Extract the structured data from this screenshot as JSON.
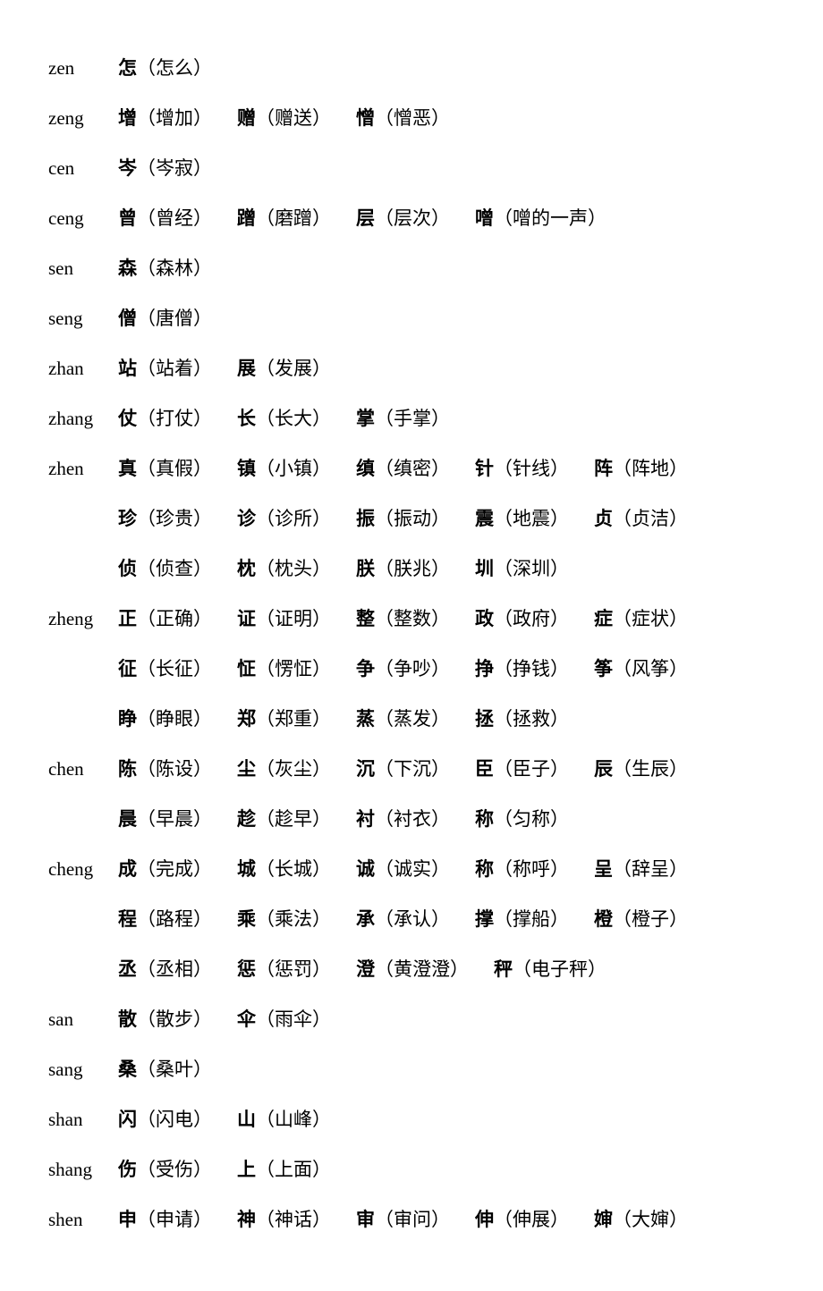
{
  "text_color": "#000000",
  "background_color": "#ffffff",
  "font_size_pt": 16,
  "rows": [
    {
      "pinyin": "zen",
      "entries": [
        {
          "h": "怎",
          "w": "怎么"
        }
      ]
    },
    {
      "pinyin": "zeng",
      "entries": [
        {
          "h": "增",
          "w": "增加"
        },
        {
          "h": "赠",
          "w": "赠送"
        },
        {
          "h": "憎",
          "w": "憎恶"
        }
      ]
    },
    {
      "pinyin": "cen",
      "entries": [
        {
          "h": "岑",
          "w": "岑寂"
        }
      ]
    },
    {
      "pinyin": "ceng",
      "entries": [
        {
          "h": "曾",
          "w": "曾经"
        },
        {
          "h": "蹭",
          "w": "磨蹭"
        },
        {
          "h": "层",
          "w": "层次"
        },
        {
          "h": "噌",
          "w": "噌的一声"
        }
      ]
    },
    {
      "pinyin": "sen",
      "entries": [
        {
          "h": "森",
          "w": "森林"
        }
      ]
    },
    {
      "pinyin": "seng",
      "entries": [
        {
          "h": "僧",
          "w": "唐僧"
        }
      ]
    },
    {
      "pinyin": "zhan",
      "entries": [
        {
          "h": "站",
          "w": "站着"
        },
        {
          "h": "展",
          "w": "发展"
        }
      ]
    },
    {
      "pinyin": "zhang",
      "entries": [
        {
          "h": "仗",
          "w": "打仗"
        },
        {
          "h": "长",
          "w": "长大"
        },
        {
          "h": "掌",
          "w": "手掌"
        }
      ]
    },
    {
      "pinyin": "zhen",
      "entries": [
        {
          "h": "真",
          "w": "真假"
        },
        {
          "h": "镇",
          "w": "小镇"
        },
        {
          "h": "缜",
          "w": "缜密"
        },
        {
          "h": "针",
          "w": "针线"
        },
        {
          "h": "阵",
          "w": "阵地"
        }
      ]
    },
    {
      "pinyin": "",
      "entries": [
        {
          "h": "珍",
          "w": "珍贵"
        },
        {
          "h": "诊",
          "w": "诊所"
        },
        {
          "h": "振",
          "w": "振动"
        },
        {
          "h": "震",
          "w": "地震"
        },
        {
          "h": "贞",
          "w": "贞洁"
        }
      ]
    },
    {
      "pinyin": "",
      "entries": [
        {
          "h": "侦",
          "w": "侦查"
        },
        {
          "h": "枕",
          "w": "枕头"
        },
        {
          "h": "朕",
          "w": "朕兆"
        },
        {
          "h": "圳",
          "w": "深圳"
        }
      ]
    },
    {
      "pinyin": "zheng",
      "entries": [
        {
          "h": "正",
          "w": "正确"
        },
        {
          "h": "证",
          "w": "证明"
        },
        {
          "h": "整",
          "w": "整数"
        },
        {
          "h": "政",
          "w": "政府"
        },
        {
          "h": "症",
          "w": "症状"
        }
      ]
    },
    {
      "pinyin": "",
      "entries": [
        {
          "h": "征",
          "w": "长征"
        },
        {
          "h": "怔",
          "w": "愣怔"
        },
        {
          "h": "争",
          "w": "争吵"
        },
        {
          "h": "挣",
          "w": "挣钱"
        },
        {
          "h": "筝",
          "w": "风筝"
        }
      ]
    },
    {
      "pinyin": "",
      "entries": [
        {
          "h": "睁",
          "w": "睁眼"
        },
        {
          "h": "郑",
          "w": "郑重"
        },
        {
          "h": "蒸",
          "w": "蒸发"
        },
        {
          "h": "拯",
          "w": "拯救"
        }
      ]
    },
    {
      "pinyin": "chen",
      "entries": [
        {
          "h": "陈",
          "w": "陈设"
        },
        {
          "h": "尘",
          "w": "灰尘"
        },
        {
          "h": "沉",
          "w": "下沉"
        },
        {
          "h": "臣",
          "w": "臣子"
        },
        {
          "h": "辰",
          "w": "生辰"
        }
      ]
    },
    {
      "pinyin": "",
      "entries": [
        {
          "h": "晨",
          "w": "早晨"
        },
        {
          "h": "趁",
          "w": "趁早"
        },
        {
          "h": "衬",
          "w": "衬衣"
        },
        {
          "h": "称",
          "w": "匀称"
        }
      ]
    },
    {
      "pinyin": "cheng",
      "entries": [
        {
          "h": "成",
          "w": "完成"
        },
        {
          "h": "城",
          "w": "长城"
        },
        {
          "h": "诚",
          "w": "诚实"
        },
        {
          "h": "称",
          "w": "称呼"
        },
        {
          "h": "呈",
          "w": "辞呈"
        }
      ]
    },
    {
      "pinyin": "",
      "entries": [
        {
          "h": "程",
          "w": "路程"
        },
        {
          "h": "乘",
          "w": "乘法"
        },
        {
          "h": "承",
          "w": "承认"
        },
        {
          "h": "撑",
          "w": "撑船"
        },
        {
          "h": "橙",
          "w": "橙子"
        }
      ]
    },
    {
      "pinyin": "",
      "entries": [
        {
          "h": "丞",
          "w": "丞相"
        },
        {
          "h": "惩",
          "w": "惩罚"
        },
        {
          "h": "澄",
          "w": "黄澄澄"
        },
        {
          "h": "秤",
          "w": "电子秤"
        }
      ]
    },
    {
      "pinyin": "san",
      "entries": [
        {
          "h": "散",
          "w": "散步"
        },
        {
          "h": "伞",
          "w": "雨伞"
        }
      ]
    },
    {
      "pinyin": "sang",
      "entries": [
        {
          "h": "桑",
          "w": "桑叶"
        }
      ]
    },
    {
      "pinyin": "shan",
      "entries": [
        {
          "h": "闪",
          "w": "闪电"
        },
        {
          "h": "山",
          "w": "山峰"
        }
      ]
    },
    {
      "pinyin": "shang",
      "entries": [
        {
          "h": "伤",
          "w": "受伤"
        },
        {
          "h": "上",
          "w": "上面"
        }
      ]
    },
    {
      "pinyin": "shen",
      "entries": [
        {
          "h": "申",
          "w": "申请"
        },
        {
          "h": "神",
          "w": "神话"
        },
        {
          "h": "审",
          "w": "审问"
        },
        {
          "h": "伸",
          "w": "伸展"
        },
        {
          "h": "婶",
          "w": "大婶"
        }
      ]
    }
  ]
}
